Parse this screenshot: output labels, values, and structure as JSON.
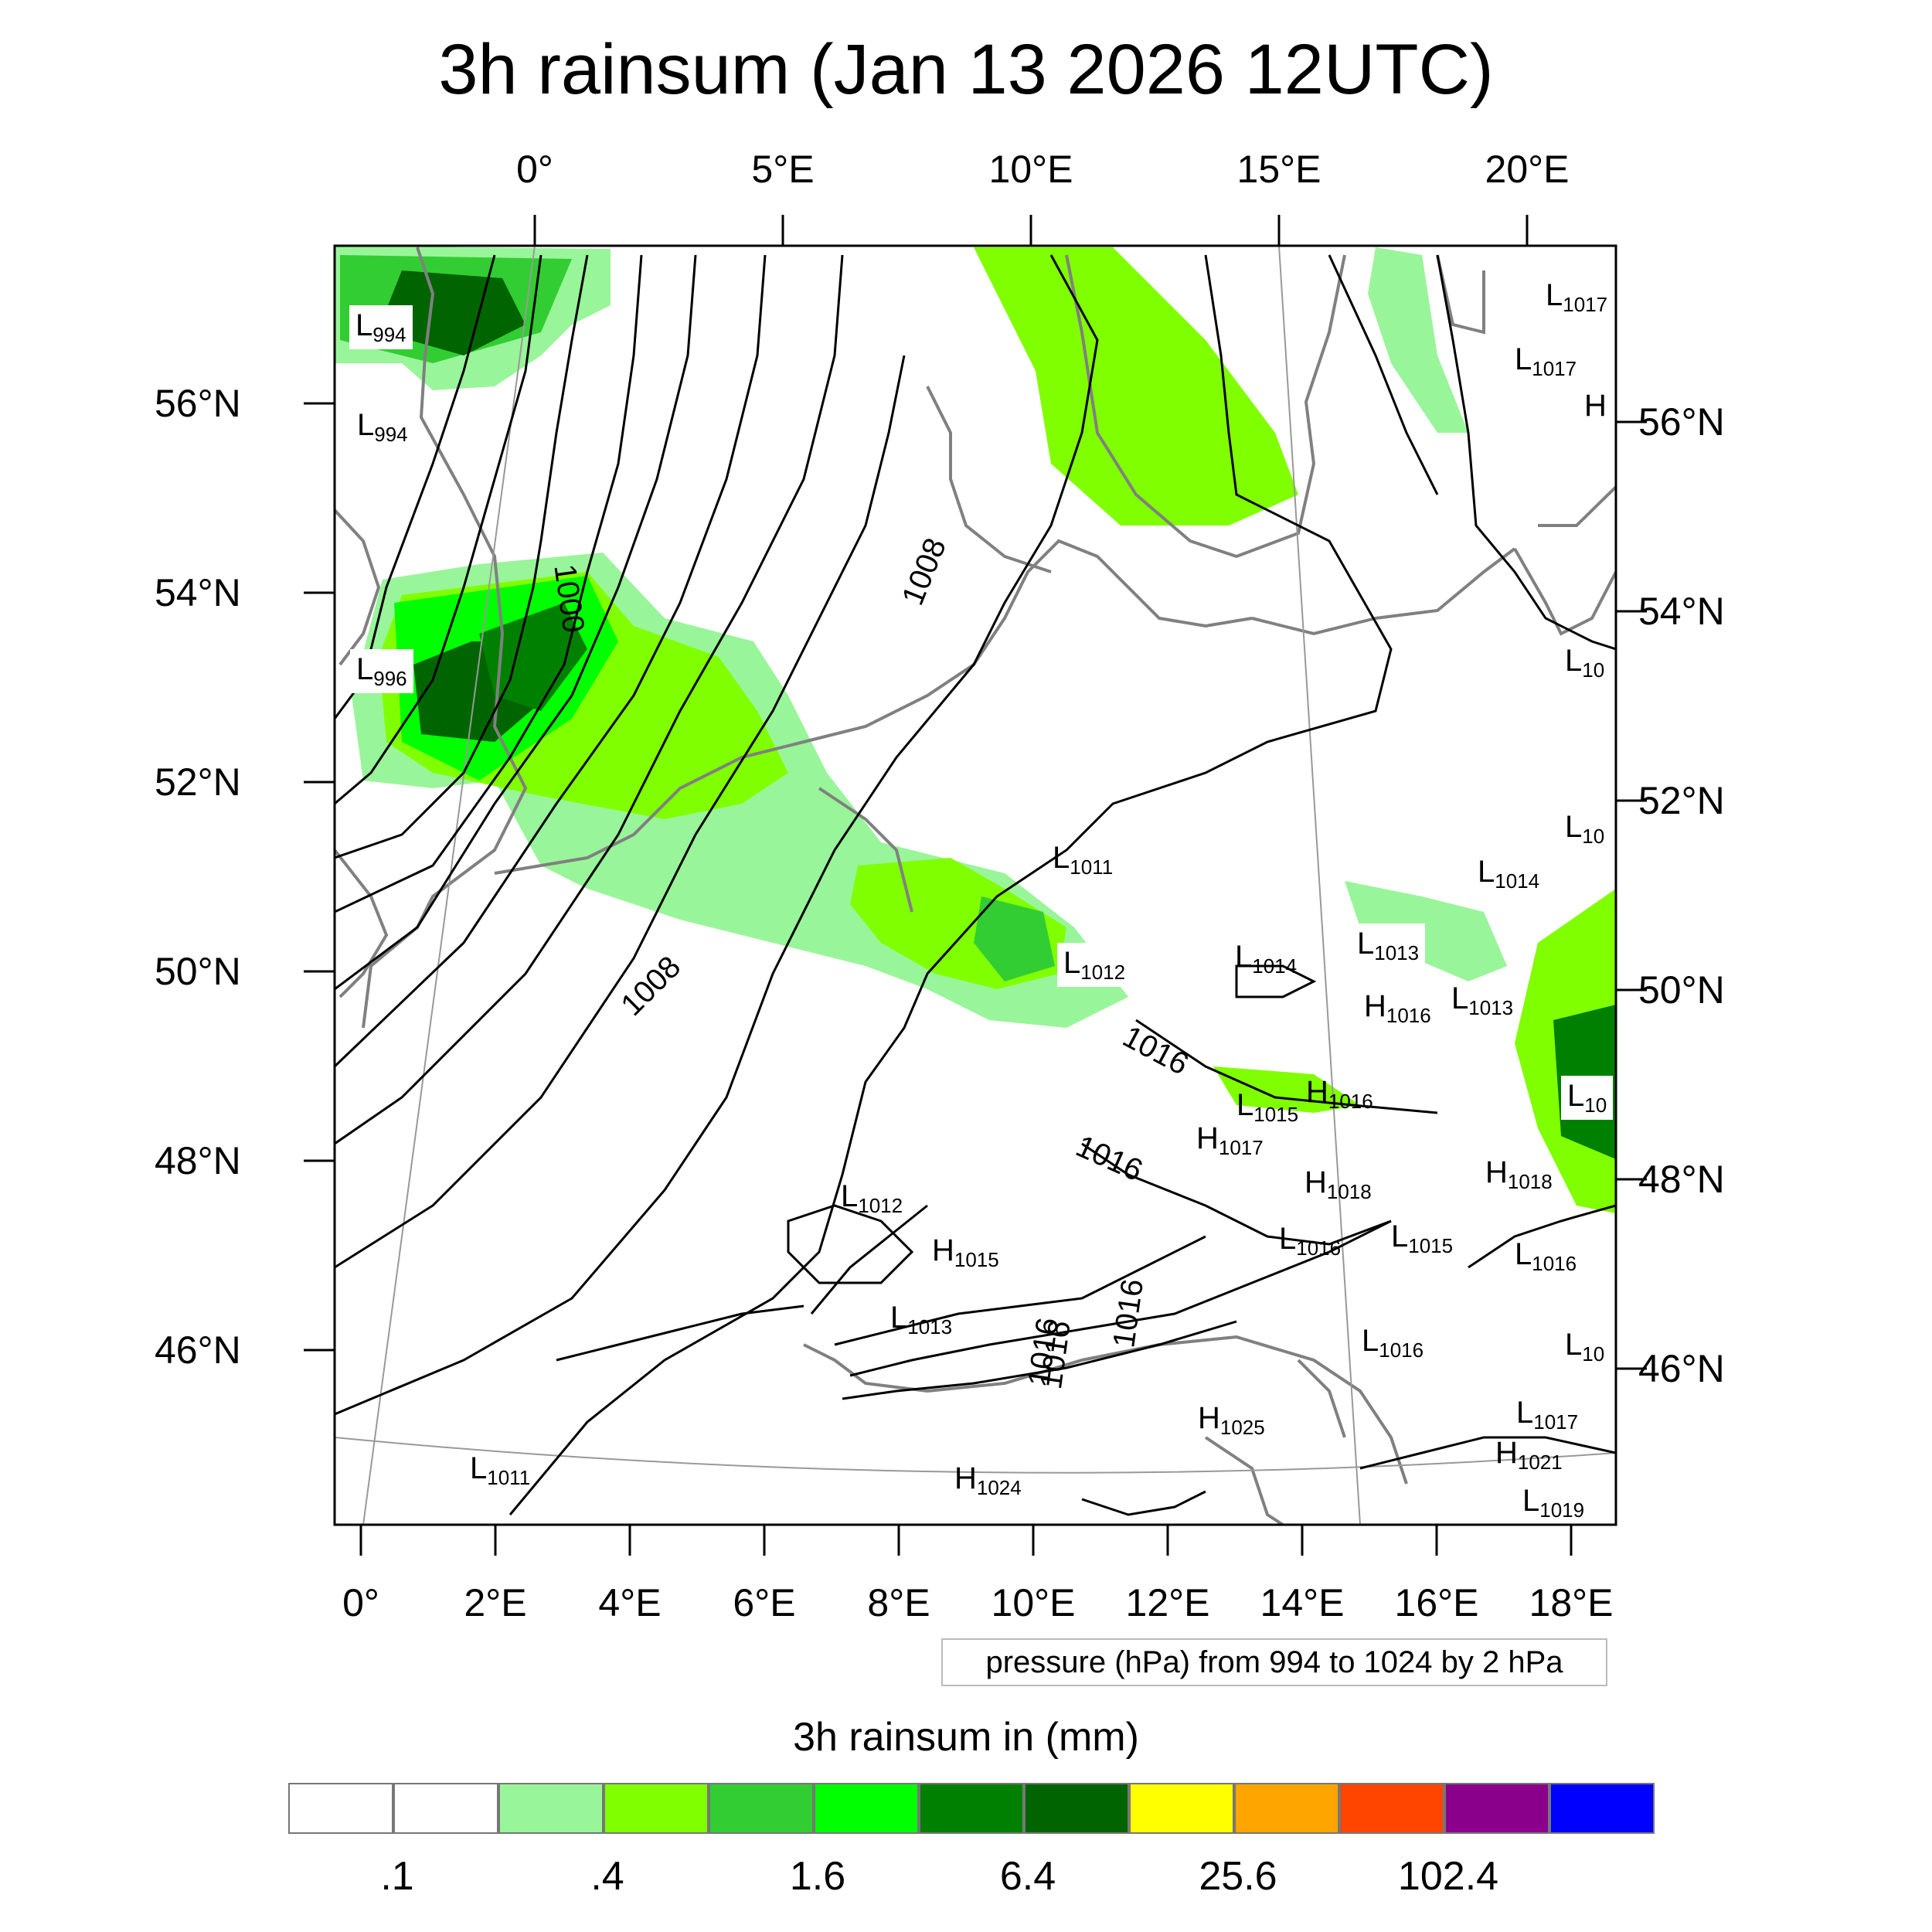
{
  "title": "3h rainsum (Jan 13 2026 12UTC)",
  "top_lon_labels": [
    "0°",
    "5°E",
    "10°E",
    "15°E",
    "20°E"
  ],
  "bottom_lon_labels": [
    "0°",
    "2°E",
    "4°E",
    "6°E",
    "8°E",
    "10°E",
    "12°E",
    "14°E",
    "16°E",
    "18°E"
  ],
  "left_lat_labels": [
    "56°N",
    "54°N",
    "52°N",
    "50°N",
    "48°N",
    "46°N"
  ],
  "right_lat_labels": [
    "56°N",
    "54°N",
    "52°N",
    "50°N",
    "48°N",
    "46°N"
  ],
  "contour_labels": [
    "1000",
    "1008",
    "1008",
    "1016",
    "1016",
    "1016",
    "1016",
    "1016"
  ],
  "pressure_centers": [
    {
      "type": "L",
      "value": "994"
    },
    {
      "type": "L",
      "value": "994"
    },
    {
      "type": "L",
      "value": "996"
    },
    {
      "type": "L",
      "value": "1017"
    },
    {
      "type": "L",
      "value": "1017"
    },
    {
      "type": "H",
      "value": ""
    },
    {
      "type": "L",
      "value": "10"
    },
    {
      "type": "L",
      "value": "10"
    },
    {
      "type": "L",
      "value": "1011"
    },
    {
      "type": "L",
      "value": "1014"
    },
    {
      "type": "L",
      "value": "1012"
    },
    {
      "type": "L",
      "value": "1014"
    },
    {
      "type": "L",
      "value": "1013"
    },
    {
      "type": "H",
      "value": "1016"
    },
    {
      "type": "L",
      "value": "1013"
    },
    {
      "type": "L",
      "value": "10"
    },
    {
      "type": "H",
      "value": "1016"
    },
    {
      "type": "L",
      "value": "1015"
    },
    {
      "type": "H",
      "value": "1017"
    },
    {
      "type": "H",
      "value": "1018"
    },
    {
      "type": "H",
      "value": "1018"
    },
    {
      "type": "L",
      "value": "1012"
    },
    {
      "type": "H",
      "value": "1015"
    },
    {
      "type": "L",
      "value": "1016"
    },
    {
      "type": "L",
      "value": "1015"
    },
    {
      "type": "L",
      "value": "1016"
    },
    {
      "type": "L",
      "value": "1013"
    },
    {
      "type": "L",
      "value": "1016"
    },
    {
      "type": "L",
      "value": "10"
    },
    {
      "type": "H",
      "value": "1025"
    },
    {
      "type": "L",
      "value": "1017"
    },
    {
      "type": "H",
      "value": "1021"
    },
    {
      "type": "L",
      "value": "1011"
    },
    {
      "type": "H",
      "value": "1024"
    },
    {
      "type": "L",
      "value": "1019"
    }
  ],
  "pressure_note": "pressure (hPa) from 994 to 1024 by 2 hPa",
  "colorbar": {
    "title": "3h rainsum in (mm)",
    "colors": [
      "#ffffff",
      "#ffffff",
      "#99f599",
      "#80ff00",
      "#32cd32",
      "#00ff00",
      "#008000",
      "#006400",
      "#ffff00",
      "#ffa500",
      "#ff4500",
      "#8b008b",
      "#0000ff"
    ],
    "labels": [
      ".1",
      ".4",
      "1.6",
      "6.4",
      "25.6",
      "102.4"
    ]
  }
}
